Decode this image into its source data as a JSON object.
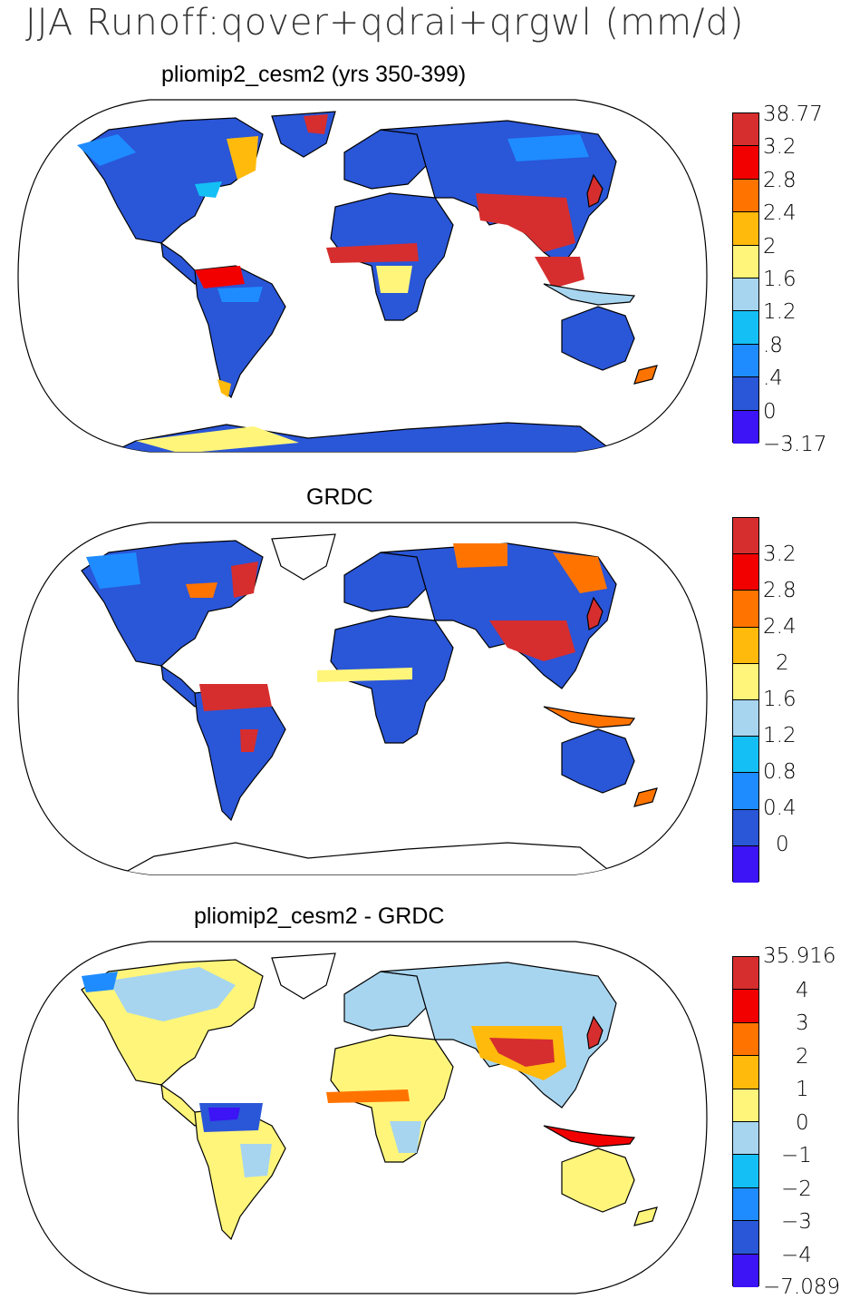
{
  "figure": {
    "title": "JJA Runoff:qover+qdrai+qrgwl (mm/d)"
  },
  "panels": [
    {
      "id": "model",
      "title": "pliomip2_cesm2 (yrs 350-399)",
      "colorbar": {
        "colors": [
          "#d62e2e",
          "#f20000",
          "#ff7400",
          "#ffba0c",
          "#fff57a",
          "#a7d5f0",
          "#14bff5",
          "#1e8cff",
          "#2a56d8",
          "#3c14f5"
        ],
        "labels": [
          "38.77",
          "3.2",
          "2.8",
          "2.4",
          "2",
          "1.6",
          "1.2",
          ".8",
          ".4",
          "0",
          "−3.17"
        ]
      }
    },
    {
      "id": "obs",
      "title": "GRDC",
      "colorbar": {
        "colors": [
          "#d62e2e",
          "#f20000",
          "#ff7400",
          "#ffba0c",
          "#fff57a",
          "#a7d5f0",
          "#14bff5",
          "#1e8cff",
          "#2a56d8",
          "#3c14f5"
        ],
        "labels": [
          "",
          "3.2",
          "2.8",
          "2.4",
          "2",
          "1.6",
          "1.2",
          "0.8",
          "0.4",
          "0",
          ""
        ]
      }
    },
    {
      "id": "diff",
      "title": "pliomip2_cesm2 - GRDC",
      "colorbar": {
        "colors": [
          "#d62e2e",
          "#f20000",
          "#ff7400",
          "#ffba0c",
          "#fff57a",
          "#a7d5f0",
          "#14bff5",
          "#1e8cff",
          "#2a56d8",
          "#3c14f5"
        ],
        "labels": [
          "35.916",
          "4",
          "3",
          "2",
          "1",
          "0",
          "−1",
          "−2",
          "−3",
          "−4",
          "−7.089"
        ]
      }
    }
  ]
}
